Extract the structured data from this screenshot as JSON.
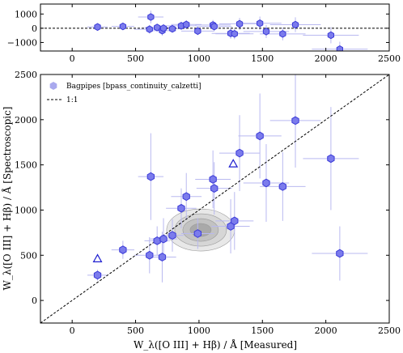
{
  "chart_data": [
    {
      "type": "scatter",
      "panel": "residual",
      "xlim": [
        -250,
        2500
      ],
      "ylim": [
        -1600,
        1700
      ],
      "xticks": [
        0,
        500,
        1000,
        1500,
        2000,
        2500
      ],
      "yticks": [
        -1000,
        0,
        1000
      ],
      "reference_line": {
        "y": 0,
        "style": "dashed"
      },
      "series": [
        {
          "marker": "hexagon",
          "color": "#3b3bd8",
          "points": [
            {
              "x": 200,
              "y": 90,
              "xerr": 80,
              "yerr": 120
            },
            {
              "x": 400,
              "y": 130,
              "xerr": 90,
              "yerr": 150
            },
            {
              "x": 610,
              "y": -70,
              "xerr": 120,
              "yerr": 300
            },
            {
              "x": 620,
              "y": 790,
              "xerr": 100,
              "yerr": 450
            },
            {
              "x": 670,
              "y": 50,
              "xerr": 100,
              "yerr": 250
            },
            {
              "x": 710,
              "y": -170,
              "xerr": 110,
              "yerr": 350
            },
            {
              "x": 720,
              "y": 0,
              "xerr": 110,
              "yerr": 300
            },
            {
              "x": 790,
              "y": -40,
              "xerr": 90,
              "yerr": 200
            },
            {
              "x": 860,
              "y": 170,
              "xerr": 120,
              "yerr": 280
            },
            {
              "x": 900,
              "y": 260,
              "xerr": 120,
              "yerr": 300
            },
            {
              "x": 990,
              "y": -200,
              "xerr": 130,
              "yerr": 280
            },
            {
              "x": 1110,
              "y": 230,
              "xerr": 140,
              "yerr": 350
            },
            {
              "x": 1120,
              "y": 120,
              "xerr": 140,
              "yerr": 320
            },
            {
              "x": 1250,
              "y": -360,
              "xerr": 150,
              "yerr": 380
            },
            {
              "x": 1280,
              "y": -390,
              "xerr": 150,
              "yerr": 380
            },
            {
              "x": 1320,
              "y": 310,
              "xerr": 160,
              "yerr": 420
            },
            {
              "x": 1480,
              "y": 350,
              "xerr": 170,
              "yerr": 470
            },
            {
              "x": 1530,
              "y": -230,
              "xerr": 180,
              "yerr": 460
            },
            {
              "x": 1660,
              "y": -400,
              "xerr": 180,
              "yerr": 450
            },
            {
              "x": 1760,
              "y": 250,
              "xerr": 200,
              "yerr": 520
            },
            {
              "x": 2040,
              "y": -490,
              "xerr": 220,
              "yerr": 570
            },
            {
              "x": 2110,
              "y": -1470,
              "xerr": 220,
              "yerr": 520
            }
          ]
        }
      ]
    },
    {
      "type": "scatter",
      "panel": "comparison",
      "xlim": [
        -250,
        2500
      ],
      "ylim": [
        -250,
        2500
      ],
      "xticks": [
        0,
        500,
        1000,
        1500,
        2000,
        2500
      ],
      "yticks": [
        0,
        500,
        1000,
        1500,
        2000,
        2500
      ],
      "xlabel": "W_λ([O III] + Hβ) / Å  [Measured]",
      "ylabel": "W_λ([O III] + Hβ) / Å  [Spectroscopic]",
      "reference_line": {
        "label": "1:1",
        "style": "dashed"
      },
      "legend": {
        "position": "top-left"
      },
      "series": [
        {
          "name": "Bagpipes [bpass_continuity_calzetti]",
          "marker": "hexagon",
          "color": "#3b3bd8",
          "points": [
            {
              "x": 200,
              "y": 280,
              "xerr": 80,
              "yerr": 60
            },
            {
              "x": 400,
              "y": 560,
              "xerr": 90,
              "yerr": 100
            },
            {
              "x": 610,
              "y": 500,
              "xerr": 120,
              "yerr": 200
            },
            {
              "x": 620,
              "y": 1370,
              "xerr": 100,
              "yerr": 480
            },
            {
              "x": 670,
              "y": 660,
              "xerr": 100,
              "yerr": 160
            },
            {
              "x": 710,
              "y": 480,
              "xerr": 110,
              "yerr": 280
            },
            {
              "x": 720,
              "y": 680,
              "xerr": 110,
              "yerr": 230
            },
            {
              "x": 790,
              "y": 720,
              "xerr": 90,
              "yerr": 180
            },
            {
              "x": 860,
              "y": 1020,
              "xerr": 120,
              "yerr": 220
            },
            {
              "x": 900,
              "y": 1150,
              "xerr": 120,
              "yerr": 260
            },
            {
              "x": 990,
              "y": 740,
              "xerr": 130,
              "yerr": 170
            },
            {
              "x": 1110,
              "y": 1340,
              "xerr": 140,
              "yerr": 320
            },
            {
              "x": 1120,
              "y": 1240,
              "xerr": 140,
              "yerr": 290
            },
            {
              "x": 1250,
              "y": 820,
              "xerr": 150,
              "yerr": 300
            },
            {
              "x": 1280,
              "y": 880,
              "xerr": 150,
              "yerr": 320
            },
            {
              "x": 1320,
              "y": 1630,
              "xerr": 160,
              "yerr": 420
            },
            {
              "x": 1480,
              "y": 1820,
              "xerr": 170,
              "yerr": 470
            },
            {
              "x": 1530,
              "y": 1300,
              "xerr": 180,
              "yerr": 430
            },
            {
              "x": 1660,
              "y": 1260,
              "xerr": 180,
              "yerr": 380
            },
            {
              "x": 1760,
              "y": 1990,
              "xerr": 200,
              "yerr": 520
            },
            {
              "x": 2040,
              "y": 1570,
              "xerr": 220,
              "yerr": 570
            },
            {
              "x": 2110,
              "y": 520,
              "xerr": 220,
              "yerr": 300
            }
          ]
        },
        {
          "marker": "open-triangle",
          "color": "#1f1fd0",
          "points": [
            {
              "x": 200,
              "y": 460
            },
            {
              "x": 1270,
              "y": 1510
            }
          ]
        }
      ],
      "density_contour": {
        "center": [
          1000,
          780
        ],
        "color": "grey"
      }
    }
  ]
}
